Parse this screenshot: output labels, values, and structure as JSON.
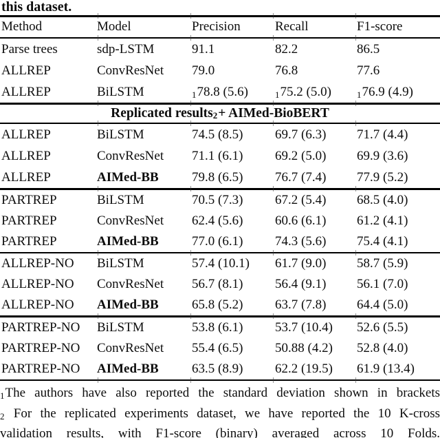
{
  "caption_tail": "this dataset.",
  "table": {
    "columns": [
      "Method",
      "Model",
      "Precision",
      "Recall",
      "F1-score"
    ],
    "sections": [
      {
        "rows": [
          {
            "method": "Parse trees",
            "model": "sdp-LSTM",
            "bold_model": false,
            "values": [
              {
                "sub": "",
                "text": "91.1"
              },
              {
                "sub": "",
                "text": "82.2"
              },
              {
                "sub": "",
                "text": "86.5"
              }
            ]
          },
          {
            "method": "ALLREP",
            "model": "ConvResNet",
            "bold_model": false,
            "values": [
              {
                "sub": "",
                "text": "79.0"
              },
              {
                "sub": "",
                "text": "76.8"
              },
              {
                "sub": "",
                "text": "77.6"
              }
            ]
          },
          {
            "method": "ALLREP",
            "model": "BiLSTM",
            "bold_model": false,
            "values": [
              {
                "sub": "1",
                "text": "78.8 (5.6)"
              },
              {
                "sub": "1",
                "text": "75.2 (5.0)"
              },
              {
                "sub": "1",
                "text": "76.9 (4.9)"
              }
            ]
          }
        ]
      },
      {
        "header": {
          "lead": "Replicated results",
          "sub": "2",
          "tail": " + AIMed-BioBERT"
        }
      },
      {
        "rows": [
          {
            "method": "ALLREP",
            "model": "BiLSTM",
            "bold_model": false,
            "values": [
              {
                "sub": "",
                "text": "74.5 (8.5)"
              },
              {
                "sub": "",
                "text": "69.7 (6.3)"
              },
              {
                "sub": "",
                "text": "71.7 (4.4)"
              }
            ]
          },
          {
            "method": "ALLREP",
            "model": "ConvResNet",
            "bold_model": false,
            "values": [
              {
                "sub": "",
                "text": "71.1 (6.1)"
              },
              {
                "sub": "",
                "text": "69.2 (5.0)"
              },
              {
                "sub": "",
                "text": "69.9 (3.6)"
              }
            ]
          },
          {
            "method": "ALLREP",
            "model": "AIMed-BB",
            "bold_model": true,
            "values": [
              {
                "sub": "",
                "text": "79.8 (6.5)"
              },
              {
                "sub": "",
                "text": "76.7 (7.4)"
              },
              {
                "sub": "",
                "text": "77.9 (5.2)"
              }
            ]
          }
        ]
      },
      {
        "rows": [
          {
            "method": "PARTREP",
            "model": "BiLSTM",
            "bold_model": false,
            "values": [
              {
                "sub": "",
                "text": "70.5 (7.3)"
              },
              {
                "sub": "",
                "text": "67.2 (5.4)"
              },
              {
                "sub": "",
                "text": "68.5 (4.0)"
              }
            ]
          },
          {
            "method": "PARTREP",
            "model": "ConvResNet",
            "bold_model": false,
            "values": [
              {
                "sub": "",
                "text": "62.4 (5.6)"
              },
              {
                "sub": "",
                "text": "60.6 (6.1)"
              },
              {
                "sub": "",
                "text": "61.2 (4.1)"
              }
            ]
          },
          {
            "method": "PARTREP",
            "model": "AIMed-BB",
            "bold_model": true,
            "values": [
              {
                "sub": "",
                "text": "77.0 (6.1)"
              },
              {
                "sub": "",
                "text": "74.3 (5.6)"
              },
              {
                "sub": "",
                "text": "75.4 (4.1)"
              }
            ]
          }
        ]
      },
      {
        "rows": [
          {
            "method": "ALLREP-NO",
            "model": "BiLSTM",
            "bold_model": false,
            "values": [
              {
                "sub": "",
                "text": "57.4 (10.1)"
              },
              {
                "sub": "",
                "text": "61.7 (9.0)"
              },
              {
                "sub": "",
                "text": "58.7 (5.9)"
              }
            ]
          },
          {
            "method": "ALLREP-NO",
            "model": "ConvResNet",
            "bold_model": false,
            "values": [
              {
                "sub": "",
                "text": "56.7 (8.1)"
              },
              {
                "sub": "",
                "text": "56.4 (9.1)"
              },
              {
                "sub": "",
                "text": "56.1 (7.0)"
              }
            ]
          },
          {
            "method": "ALLREP-NO",
            "model": "AIMed-BB",
            "bold_model": true,
            "values": [
              {
                "sub": "",
                "text": "65.8 (5.2)"
              },
              {
                "sub": "",
                "text": "63.7 (7.8)"
              },
              {
                "sub": "",
                "text": "64.4 (5.0)"
              }
            ]
          }
        ]
      },
      {
        "rows": [
          {
            "method": "PARTREP-NO",
            "model": "BiLSTM",
            "bold_model": false,
            "values": [
              {
                "sub": "",
                "text": "53.8 (6.1)"
              },
              {
                "sub": "",
                "text": "53.7 (10.4)"
              },
              {
                "sub": "",
                "text": "52.6 (5.5)"
              }
            ]
          },
          {
            "method": "PARTREP-NO",
            "model": "ConvResNet",
            "bold_model": false,
            "values": [
              {
                "sub": "",
                "text": "55.4 (6.5)"
              },
              {
                "sub": "",
                "text": "50.88 (4.2)"
              },
              {
                "sub": "",
                "text": "52.8 (4.0)"
              }
            ]
          },
          {
            "method": "PARTREP-NO",
            "model": "AIMed-BB",
            "bold_model": true,
            "values": [
              {
                "sub": "",
                "text": "63.5 (8.9)"
              },
              {
                "sub": "",
                "text": "62.2 (19.5)"
              },
              {
                "sub": "",
                "text": "61.9 (13.4)"
              }
            ]
          }
        ]
      }
    ]
  },
  "footnotes": [
    {
      "sub": "1",
      "text": "The authors have also reported the standard deviation shown in brackets"
    },
    {
      "sub": "2",
      "text": " For the replicated experiments dataset, we have reported the 10 K-cross"
    },
    {
      "sub": "",
      "text": "validation results, with F1-score (binary) averaged across 10 Folds."
    }
  ],
  "colors": {
    "text": "#0d0d0d",
    "rule": "#000000",
    "background": "#ffffff"
  }
}
